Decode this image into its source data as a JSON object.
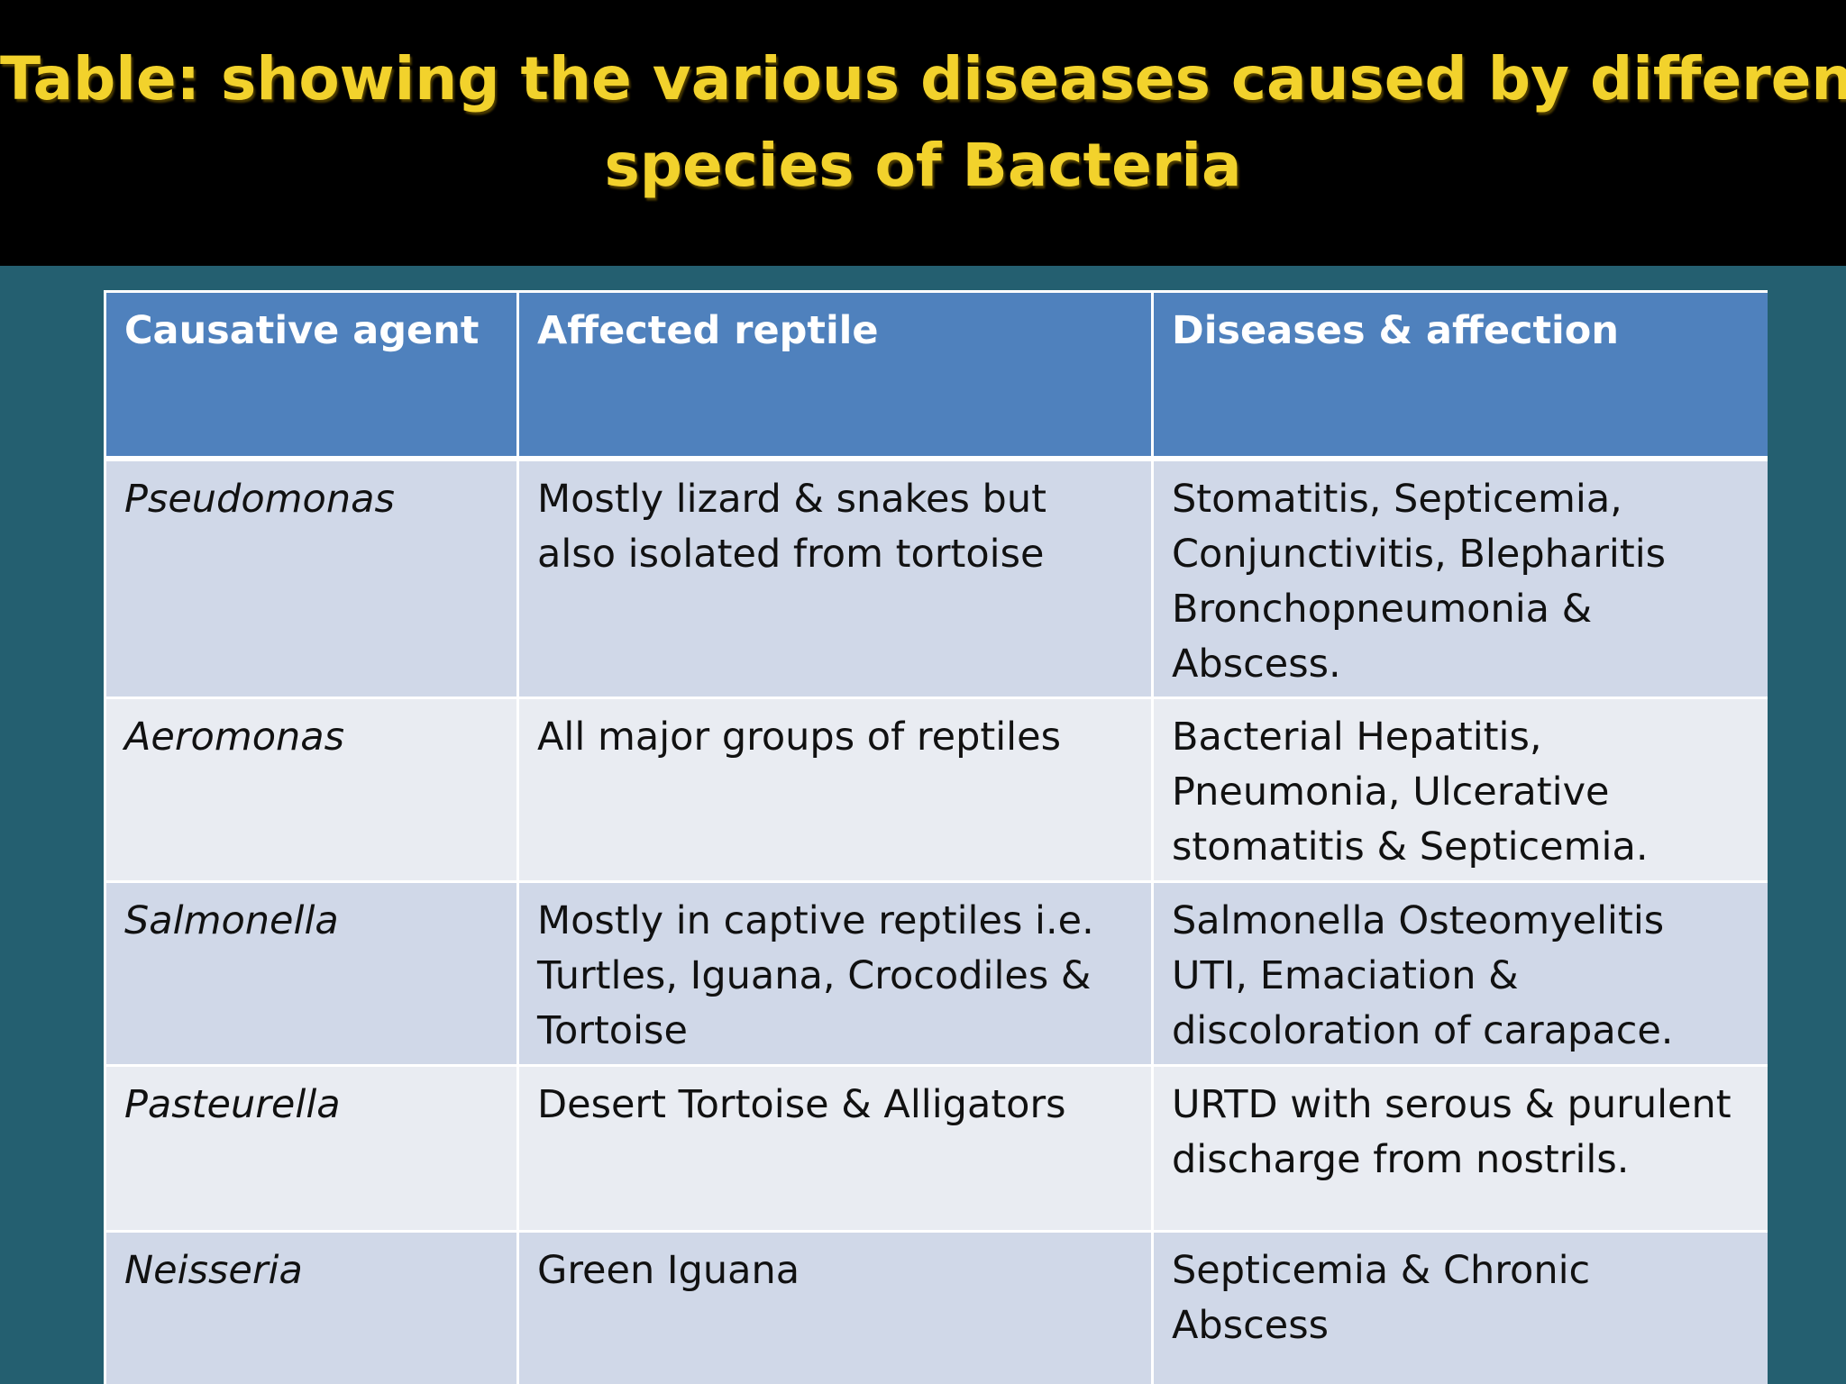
{
  "title": {
    "line1": "Table: showing the various diseases caused by different",
    "line2": "species of Bacteria"
  },
  "table": {
    "headers": [
      "Causative agent",
      "Affected reptile",
      "Diseases & affection"
    ],
    "rows": [
      {
        "agent": "Pseudomonas",
        "reptile": "Mostly lizard & snakes but also isolated from tortoise",
        "disease": "Stomatitis, Septicemia, Conjunctivitis, Blepharitis Bronchopneumonia & Abscess."
      },
      {
        "agent": "Aeromonas",
        "reptile": "All major groups of reptiles",
        "disease": "Bacterial Hepatitis, Pneumonia, Ulcerative stomatitis & Septicemia."
      },
      {
        "agent": "Salmonella",
        "reptile": "Mostly in captive reptiles i.e. Turtles, Iguana, Crocodiles & Tortoise",
        "disease": "Salmonella Osteomyelitis UTI, Emaciation & discoloration of carapace."
      },
      {
        "agent": "Pasteurella",
        "reptile": "Desert Tortoise & Alligators",
        "disease": "URTD with serous & purulent discharge from nostrils."
      },
      {
        "agent": "Neisseria",
        "reptile": "Green Iguana",
        "disease": "Septicemia & Chronic Abscess"
      }
    ]
  }
}
